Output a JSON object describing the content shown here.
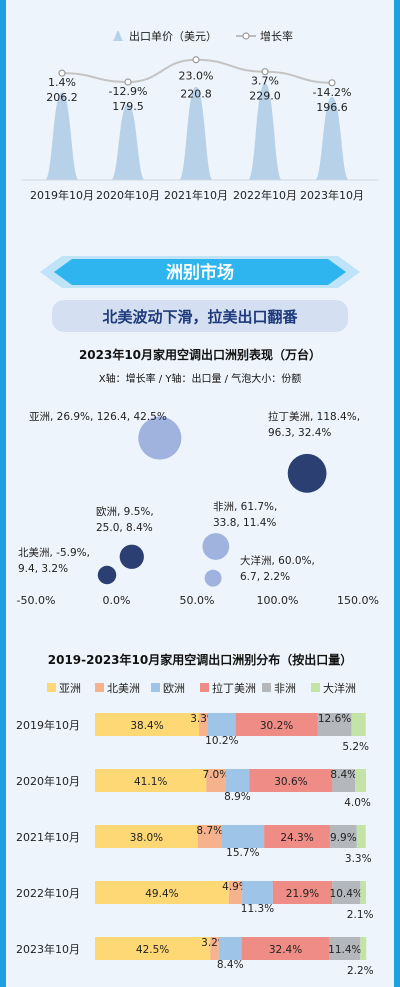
{
  "section": {
    "title": "洲别市场",
    "subtitle": "北美波动下滑，拉美出口翻番"
  },
  "colors": {
    "frame": "#1ea0e0",
    "banner": "#2eb5ef",
    "bubble_dark": "#2b3f73",
    "bubble_light": "#9fb3de"
  },
  "chart_data": [
    {
      "type": "bar",
      "legend": [
        "出口单价（美元）",
        "增长率"
      ],
      "categories": [
        "2019年10月",
        "2020年10月",
        "2021年10月",
        "2022年10月",
        "2023年10月"
      ],
      "series": [
        {
          "name": "出口单价（美元）",
          "values": [
            206.2,
            179.5,
            220.8,
            229.0,
            196.6
          ],
          "labels": [
            "206.2",
            "179.5",
            "220.8",
            "229.0",
            "196.6"
          ]
        },
        {
          "name": "增长率",
          "values": [
            1.4,
            -12.9,
            23.0,
            3.7,
            -14.2
          ],
          "labels": [
            "1.4%",
            "-12.9%",
            "23.0%",
            "3.7%",
            "-14.2%"
          ]
        }
      ],
      "legend_position": "top"
    },
    {
      "type": "scatter",
      "title": "2023年10月家用空调出口洲别表现（万台）",
      "axis_note": "X轴：增长率 / Y轴：出口量 / 气泡大小：份额",
      "x_ticks": [
        "-50.0%",
        "0.0%",
        "50.0%",
        "100.0%",
        "150.0%"
      ],
      "xlim": [
        -50,
        150
      ],
      "points": [
        {
          "name": "亚洲",
          "x": 26.9,
          "y": 126.4,
          "size": 42.5,
          "label": "亚洲, 26.9%, 126.4, 42.5%",
          "tone": "light"
        },
        {
          "name": "拉丁美洲",
          "x": 118.4,
          "y": 96.3,
          "size": 32.4,
          "label1": "拉丁美洲, 118.4%,",
          "label2": "96.3, 32.4%",
          "tone": "dark"
        },
        {
          "name": "欧洲",
          "x": 9.5,
          "y": 25.0,
          "size": 8.4,
          "label1": "欧洲, 9.5%,",
          "label2": "25.0, 8.4%",
          "tone": "dark"
        },
        {
          "name": "非洲",
          "x": 61.7,
          "y": 33.8,
          "size": 11.4,
          "label1": "非洲, 61.7%,",
          "label2": "33.8, 11.4%",
          "tone": "light"
        },
        {
          "name": "北美洲",
          "x": -5.9,
          "y": 9.4,
          "size": 3.2,
          "label1": "北美洲, -5.9%,",
          "label2": "9.4, 3.2%",
          "tone": "dark"
        },
        {
          "name": "大洋洲",
          "x": 60.0,
          "y": 6.7,
          "size": 2.2,
          "label1": "大洋洲, 60.0%,",
          "label2": "6.7, 2.2%",
          "tone": "light"
        }
      ]
    },
    {
      "type": "bar",
      "stacked": true,
      "horizontal": true,
      "title": "2019-2023年10月家用空调出口洲别分布（按出口量）",
      "categories": [
        "2019年10月",
        "2020年10月",
        "2021年10月",
        "2022年10月",
        "2023年10月"
      ],
      "series": [
        {
          "name": "亚洲",
          "color": "#fdd874",
          "values": [
            38.4,
            41.1,
            38.0,
            49.4,
            42.5
          ],
          "labels": [
            "38.4%",
            "41.1%",
            "38.0%",
            "49.4%",
            "42.5%"
          ]
        },
        {
          "name": "北美洲",
          "color": "#f6b28c",
          "values": [
            3.3,
            7.0,
            8.7,
            4.9,
            3.2
          ],
          "labels": [
            "3.3%",
            "7.0%",
            "8.7%",
            "4.9%",
            "3.2%"
          ]
        },
        {
          "name": "欧洲",
          "color": "#9ec4e8",
          "values": [
            10.2,
            8.9,
            15.7,
            11.3,
            8.4
          ],
          "labels": [
            "10.2%",
            "8.9%",
            "15.7%",
            "11.3%",
            "8.4%"
          ]
        },
        {
          "name": "拉丁美洲",
          "color": "#ee8c85",
          "values": [
            30.2,
            30.6,
            24.3,
            21.9,
            32.4
          ],
          "labels": [
            "30.2%",
            "30.6%",
            "24.3%",
            "21.9%",
            "32.4%"
          ]
        },
        {
          "name": "非洲",
          "color": "#b4b8bc",
          "values": [
            12.6,
            8.4,
            9.9,
            10.4,
            11.4
          ],
          "labels": [
            "12.6%",
            "8.4%",
            "9.9%",
            "10.4%",
            "11.4%"
          ]
        },
        {
          "name": "大洋洲",
          "color": "#c4e3a6",
          "values": [
            5.2,
            4.0,
            3.3,
            2.1,
            2.2
          ],
          "labels": [
            "5.2%",
            "4.0%",
            "3.3%",
            "2.1%",
            "2.2%"
          ]
        }
      ],
      "legend_position": "top"
    }
  ]
}
